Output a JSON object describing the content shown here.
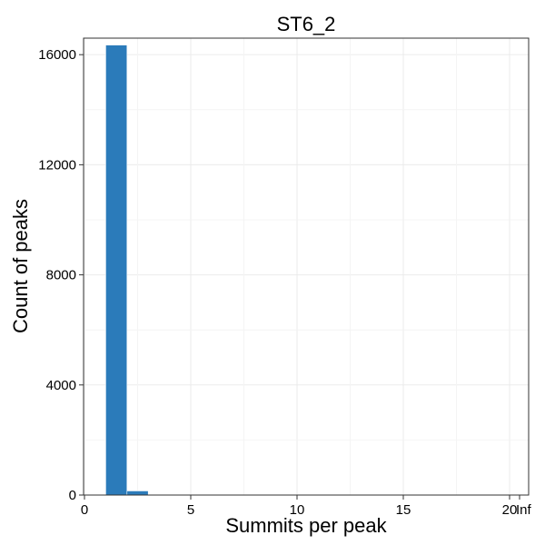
{
  "chart_data": {
    "type": "bar",
    "title": "ST6_2",
    "xlabel": "Summits per peak",
    "ylabel": "Count of peaks",
    "x_ticks": [
      {
        "value": 0,
        "label": "0"
      },
      {
        "value": 5,
        "label": "5"
      },
      {
        "value": 10,
        "label": "10"
      },
      {
        "value": 15,
        "label": "15"
      },
      {
        "value": 20,
        "label": "20"
      },
      {
        "value": 21,
        "label": "Inf"
      }
    ],
    "y_ticks": [
      0,
      4000,
      8000,
      12000,
      16000
    ],
    "xlim": [
      0,
      21
    ],
    "ylim": [
      0,
      16600
    ],
    "bins": [
      {
        "start": 1,
        "end": 2,
        "count": 16350
      },
      {
        "start": 2,
        "end": 3,
        "count": 150
      }
    ],
    "bar_color": "#2b7bba",
    "grid": true
  }
}
